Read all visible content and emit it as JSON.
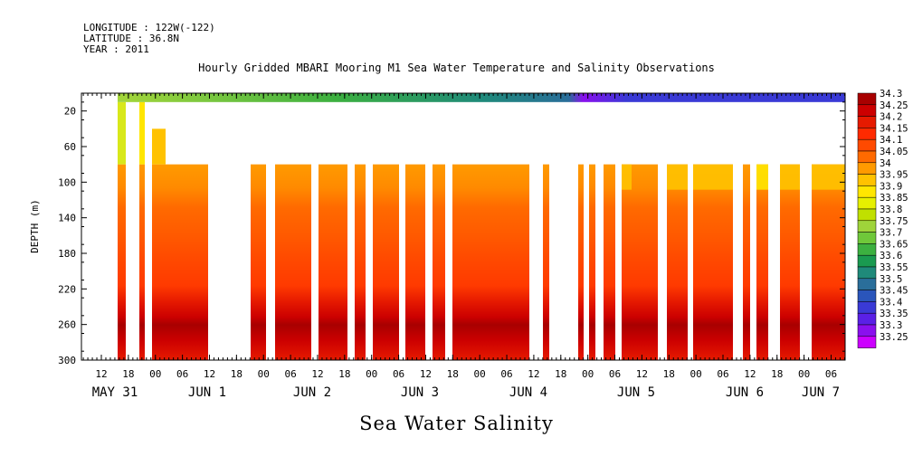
{
  "header": {
    "longitude": "LONGITUDE : 122W(-122)",
    "latitude": "LATITUDE : 36.8N",
    "year": "YEAR : 2011"
  },
  "chart_data": {
    "type": "heatmap",
    "title": "Hourly Gridded MBARI Mooring M1 Sea Water Temperature and Salinity Observations",
    "xlabel": "",
    "ylabel": "DEPTH (m)",
    "caption": "Sea Water Salinity",
    "ylim": [
      300,
      0
    ],
    "y_ticks": [
      20,
      60,
      100,
      140,
      180,
      220,
      260,
      300
    ],
    "x_hour_ticks": [
      "12",
      "18",
      "00",
      "06",
      "12",
      "18",
      "00",
      "06",
      "12",
      "18",
      "00",
      "06",
      "12",
      "18",
      "00",
      "06",
      "12",
      "18",
      "00",
      "06",
      "12",
      "18",
      "00",
      "06",
      "12",
      "18",
      "00",
      "06"
    ],
    "x_day_labels": [
      "MAY 31",
      "JUN  1",
      "JUN  2",
      "JUN  3",
      "JUN  4",
      "JUN  5",
      "JUN  6",
      "JUN  7"
    ],
    "colorbar_levels": [
      "34.3",
      "34.25",
      "34.2",
      "34.15",
      "34.1",
      "34.05",
      "34",
      "33.95",
      "33.9",
      "33.85",
      "33.8",
      "33.75",
      "33.7",
      "33.65",
      "33.6",
      "33.55",
      "33.5",
      "33.45",
      "33.4",
      "33.35",
      "33.3",
      "33.25"
    ],
    "colorbar_colors": [
      "#a80000",
      "#cc0000",
      "#e61a00",
      "#ff2a00",
      "#ff4a00",
      "#ff6a00",
      "#ff9a00",
      "#ffc200",
      "#ffe600",
      "#e6f000",
      "#c0e000",
      "#9fd43a",
      "#6fc83a",
      "#3cb040",
      "#1a9a50",
      "#1f8a7a",
      "#2a6e9a",
      "#2a55bb",
      "#3a3ad6",
      "#5a20e6",
      "#8a10ee",
      "#cc00ff"
    ],
    "observations": {
      "surface_band_depth_m": [
        0,
        10
      ],
      "profile_top_depth_m": 80,
      "day_surface_salinity_range": [
        33.5,
        33.85
      ],
      "deep_salinity_range": [
        34.15,
        34.3
      ],
      "mid_salinity_range": [
        33.95,
        34.15
      ]
    }
  }
}
